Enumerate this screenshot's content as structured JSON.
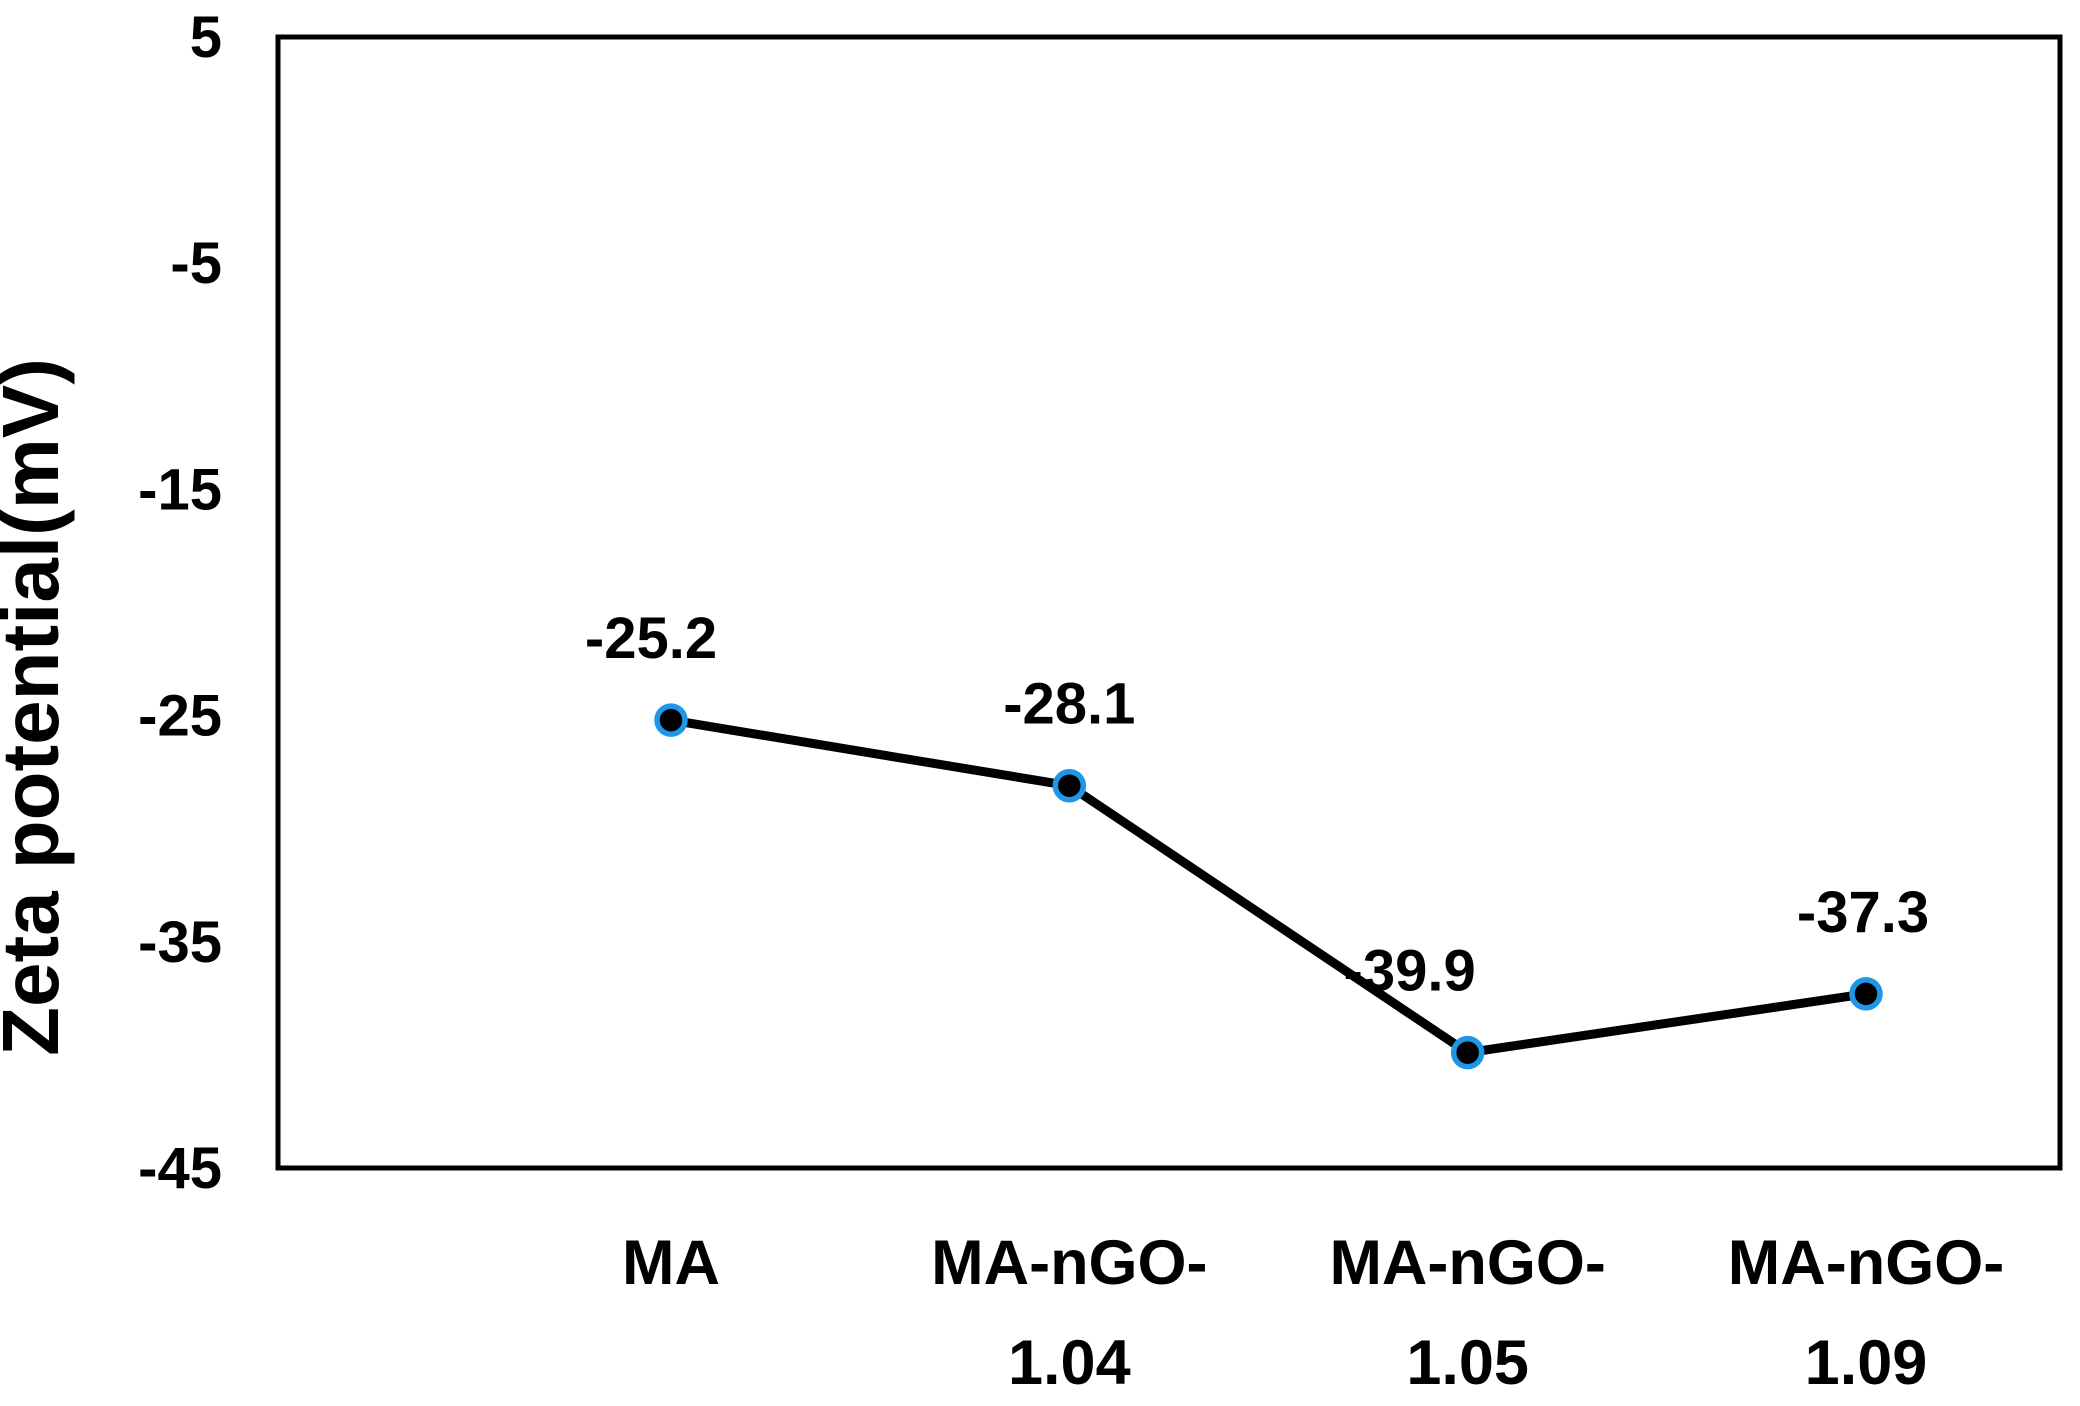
{
  "chart_data": {
    "type": "line",
    "title": "",
    "xlabel": "",
    "ylabel": "Zeta potential(mV)",
    "categories": [
      "MA",
      "MA-nGO-1.04",
      "MA-nGO-1.05",
      "MA-nGO-1.09"
    ],
    "category_label_lines": [
      [
        "MA"
      ],
      [
        "MA-nGO-",
        "1.04"
      ],
      [
        "MA-nGO-",
        "1.05"
      ],
      [
        "MA-nGO-",
        "1.09"
      ]
    ],
    "series": [
      {
        "name": "Zeta potential (mV)",
        "values": [
          -25.2,
          -28.1,
          -39.9,
          -37.3
        ]
      }
    ],
    "data_labels": [
      "-25.2",
      "-28.1",
      "-39.9",
      "-37.3"
    ],
    "y_ticks": [
      "5",
      "-5",
      "-15",
      "-25",
      "-35",
      "-45"
    ],
    "y_tick_values": [
      5,
      -5,
      -15,
      -25,
      -35,
      -45
    ],
    "ylim": [
      -45,
      5
    ],
    "grid": false,
    "legend_position": "none",
    "colors": {
      "line": "#000000",
      "marker_fill": "#000000",
      "marker_ring": "#1e97e8",
      "axis_border": "#000000",
      "text": "#000000",
      "background": "#ffffff"
    }
  }
}
